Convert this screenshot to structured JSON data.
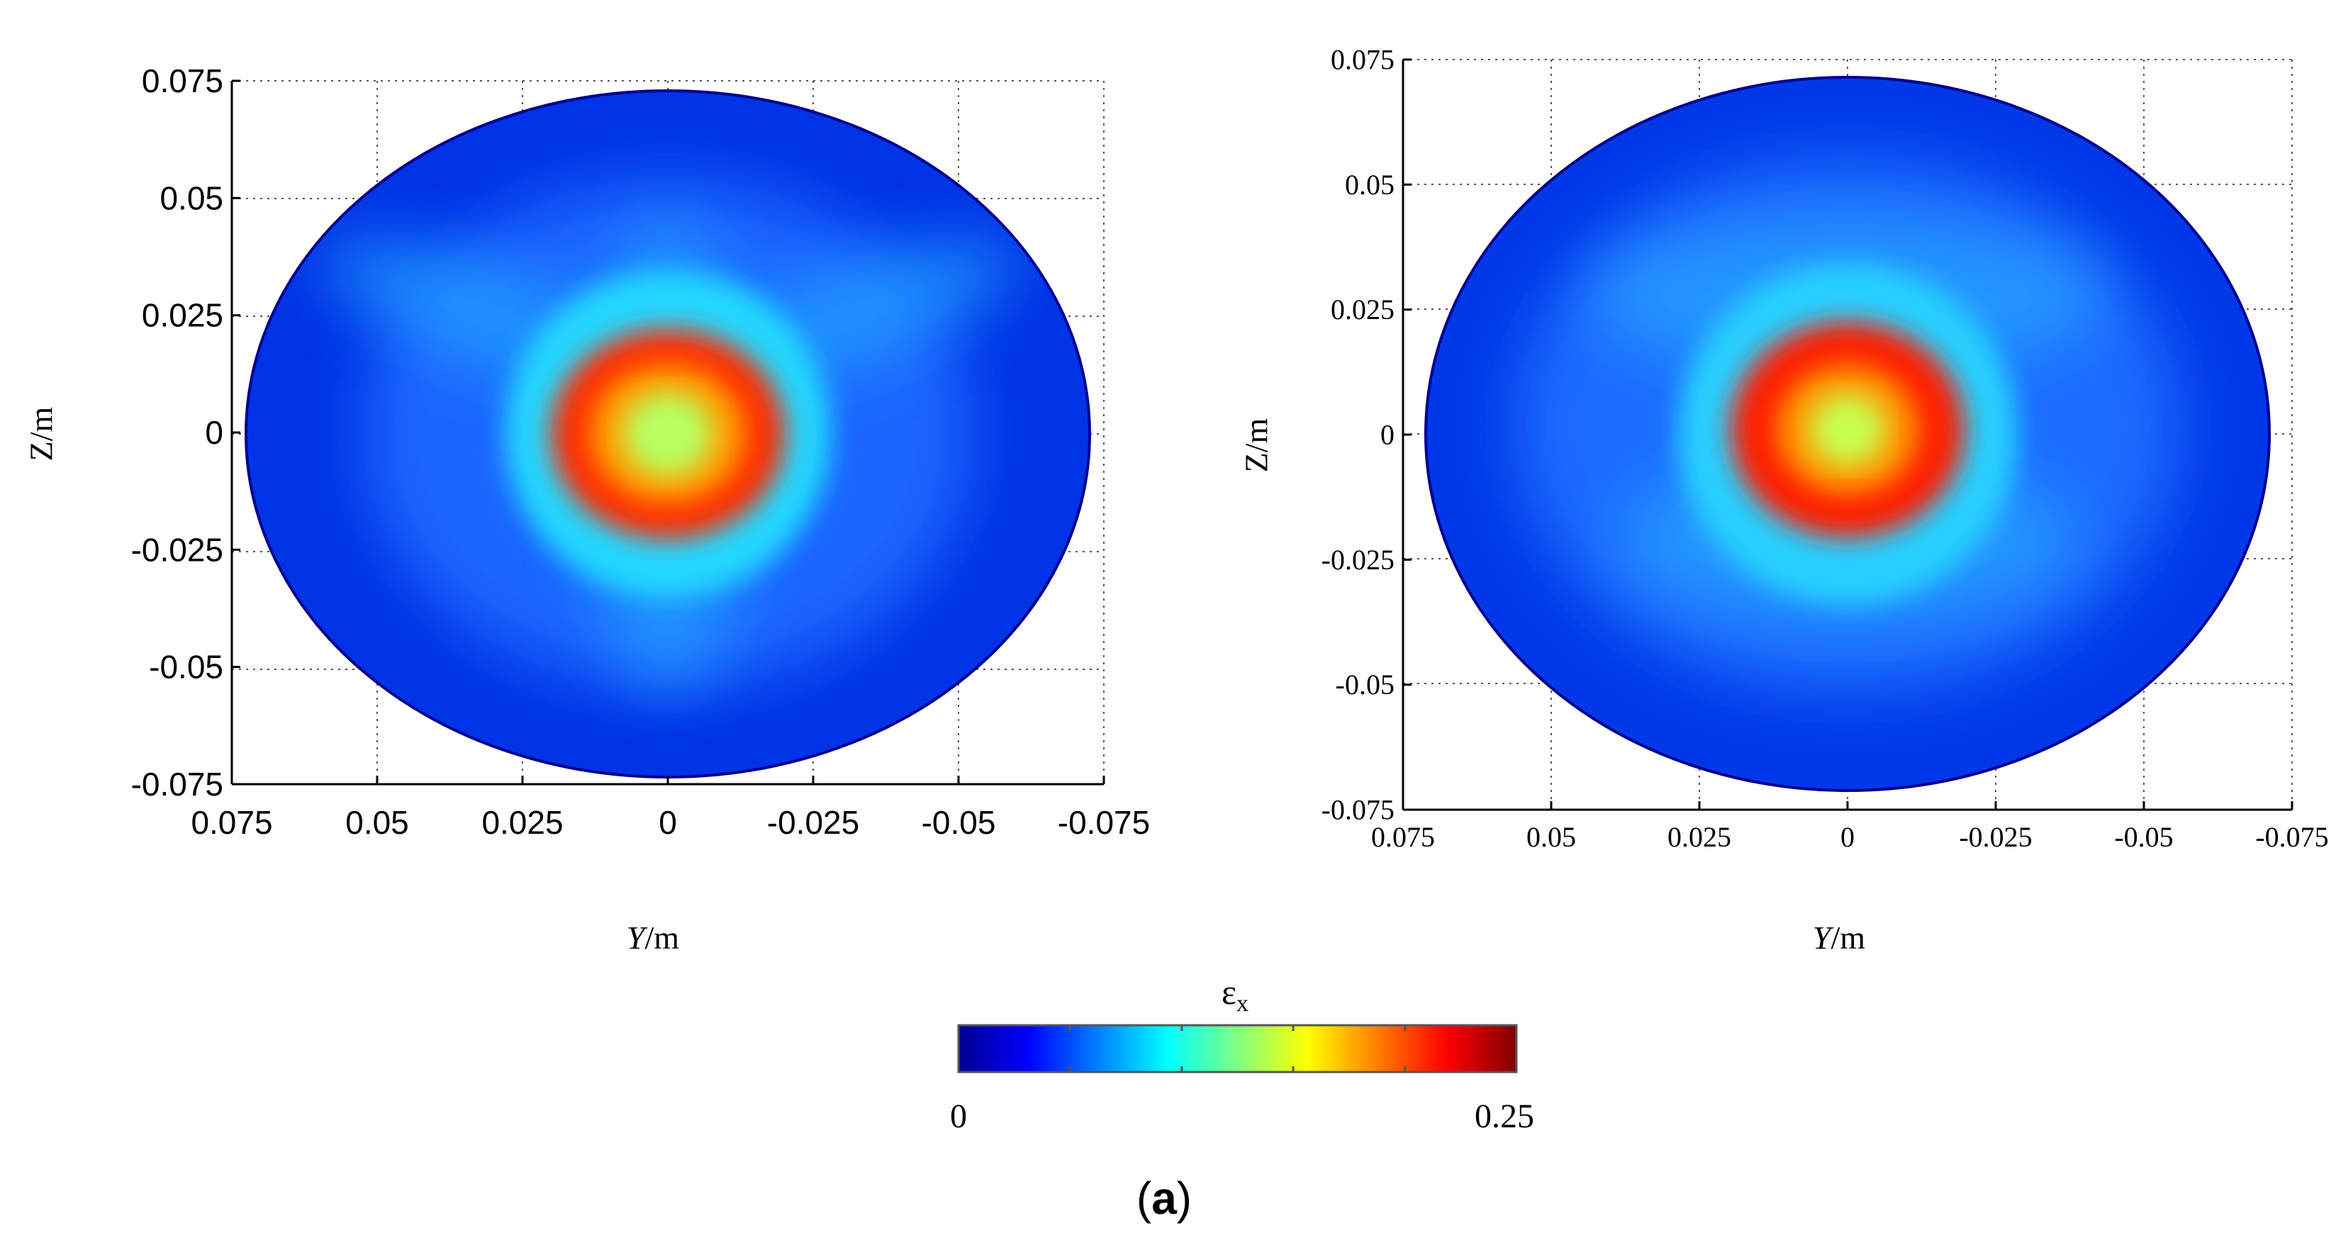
{
  "chart_data": [
    {
      "type": "heatmap",
      "panel": "left",
      "xlabel_italic": "Y",
      "xlabel_unit": "/m",
      "ylabel": "Z/m",
      "xlim": [
        0.075,
        -0.075
      ],
      "ylim": [
        -0.075,
        0.075
      ],
      "x_reversed": true,
      "x_ticks": [
        0.075,
        0.05,
        0.025,
        0,
        -0.025,
        -0.05,
        -0.075
      ],
      "x_tick_labels": [
        "0.075",
        "0.05",
        "0.025",
        "0",
        "-0.025",
        "-0.05",
        "-0.075"
      ],
      "y_ticks": [
        0.075,
        0.05,
        0.025,
        0,
        -0.025,
        -0.05,
        -0.075
      ],
      "y_tick_labels": [
        "0.075",
        "0.05",
        "0.025",
        "0",
        "-0.025",
        "-0.05",
        "-0.075"
      ],
      "grid": true,
      "field_domain": {
        "center": [
          0,
          0
        ],
        "radius_y": 0.0725,
        "radius_z": 0.0725
      },
      "high_strain_ring": {
        "center": [
          0,
          0
        ],
        "inner_radius": 0.005,
        "outer_radius": 0.019,
        "peak_value": 0.22
      },
      "center_value": 0.15,
      "background_value": 0.02
    },
    {
      "type": "heatmap",
      "panel": "right",
      "xlabel_italic": "Y",
      "xlabel_unit": "/m",
      "ylabel": "Z/m",
      "xlim": [
        0.075,
        -0.075
      ],
      "ylim": [
        -0.075,
        0.075
      ],
      "x_reversed": true,
      "x_ticks": [
        0.075,
        0.05,
        0.025,
        0,
        -0.025,
        -0.05,
        -0.075
      ],
      "x_tick_labels": [
        "0.075",
        "0.05",
        "0.025",
        "0",
        "-0.025",
        "-0.05",
        "-0.075"
      ],
      "y_ticks": [
        0.075,
        0.05,
        0.025,
        0,
        -0.025,
        -0.05,
        -0.075
      ],
      "y_tick_labels": [
        "0.075",
        "0.05",
        "0.025",
        "0",
        "-0.025",
        "-0.05",
        "-0.075"
      ],
      "grid": true,
      "field_domain": {
        "center": [
          0,
          0
        ],
        "radius_y": 0.0725,
        "radius_z": 0.0725
      },
      "high_strain_ring": {
        "center": [
          0,
          0
        ],
        "inner_radius": 0.005,
        "outer_radius": 0.02,
        "peak_value": 0.23
      },
      "center_value": 0.14,
      "background_value": 0.03
    }
  ],
  "colorbar": {
    "label_main": "ε",
    "label_sub": "x",
    "min_label": "0",
    "max_label": "0.25",
    "range": [
      0,
      0.25
    ],
    "colormap": "jet",
    "colormap_stops": [
      "#00008f",
      "#0000ff",
      "#0080ff",
      "#00ffff",
      "#80ff80",
      "#ffff00",
      "#ff8000",
      "#ff0000",
      "#800000"
    ]
  },
  "caption": {
    "open": "(",
    "letter": "a",
    "close": ")"
  }
}
